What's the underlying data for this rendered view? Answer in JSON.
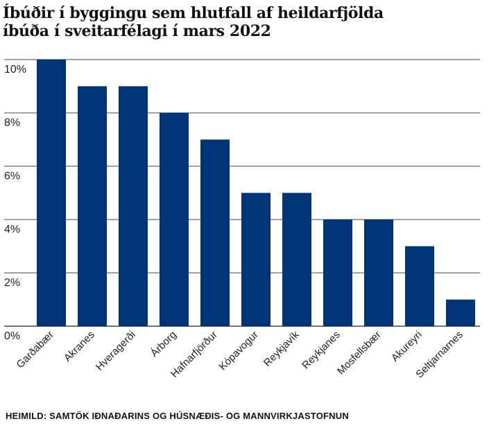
{
  "title_lines": [
    "Íbúðir í byggingu sem hlutfall af heildarfjölda",
    "íbúða í sveitarfélagi í mars 2022"
  ],
  "source": "HEIMILD: SAMTÖK IÐNAÐARINS OG HÚSNÆÐIS- OG MANNVIRKJASTOFNUN",
  "colors": {
    "bar": "#003478",
    "grid": "#444444",
    "text": "#222222"
  },
  "chart_data": {
    "type": "bar",
    "title": "Íbúðir í byggingu sem hlutfall af heildarfjölda íbúða í sveitarfélagi í mars 2022",
    "categories": [
      "Garðabær",
      "Akranes",
      "Hveragerði",
      "Árborg",
      "Hafnarfjörður",
      "Kópavogur",
      "Reykjavík",
      "Reykjanes",
      "Mosfellsbær",
      "Akureyri",
      "Seltjarnarnes"
    ],
    "values": [
      10,
      9,
      9,
      8,
      7,
      5,
      5,
      4,
      4,
      3,
      1
    ],
    "unit": "%",
    "ylim": [
      0,
      10
    ],
    "yticks": [
      0,
      2,
      4,
      6,
      8,
      10
    ],
    "ytick_labels": [
      "0%",
      "2%",
      "4%",
      "6%",
      "8%",
      "10%"
    ],
    "grid": true,
    "xlabel": "",
    "ylabel": ""
  }
}
